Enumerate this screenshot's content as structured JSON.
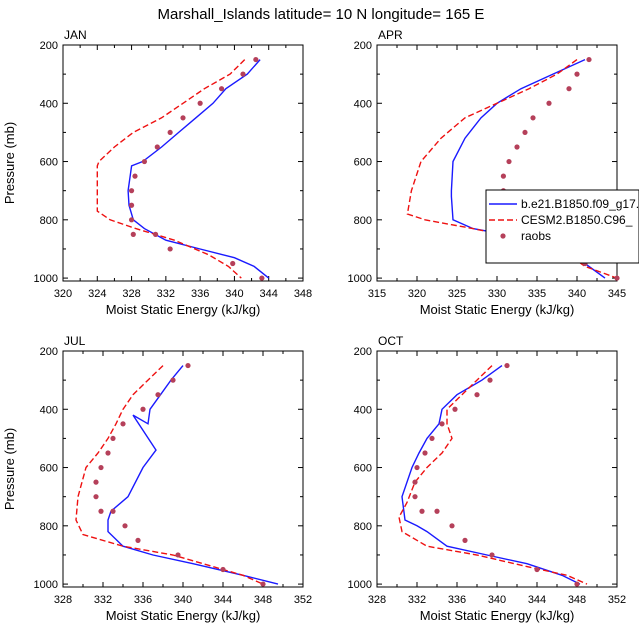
{
  "figure": {
    "title": "Marshall_Islands  latitude= 10 N longitude= 165 E",
    "colors": {
      "model1": "#1a1aff",
      "model2": "#ee1111",
      "raobs": "#b5405a",
      "axis": "#000000"
    },
    "legend": {
      "entries": [
        "b.e21.B1850.f09_g17.",
        "CESM2.B1850.C96_",
        "raobs"
      ]
    }
  },
  "chart_data": [
    {
      "type": "line",
      "panel": "JAN",
      "xlabel": "Moist Static Energy (kJ/kg)",
      "ylabel": "Pressure (mb)",
      "xlim": [
        320,
        348
      ],
      "ylim": [
        1010,
        200
      ],
      "xticks": [
        320,
        324,
        328,
        332,
        336,
        340,
        344,
        348
      ],
      "yticks": [
        200,
        400,
        600,
        800,
        1000
      ],
      "series": [
        {
          "name": "b.e21.B1850.f09_g17",
          "style": "solid",
          "color": "#1a1aff",
          "x": [
            343.0,
            341.5,
            339.0,
            337.5,
            335.5,
            333.5,
            331.5,
            329.3,
            328.0,
            327.6,
            327.7,
            328.2,
            329.5,
            332.0,
            336.0,
            340.0,
            342.3,
            344.0
          ],
          "y": [
            250,
            300,
            350,
            400,
            450,
            500,
            550,
            600,
            615,
            700,
            750,
            800,
            830,
            870,
            900,
            930,
            960,
            1000
          ]
        },
        {
          "name": "CESM2.B1850.C96",
          "style": "dashed",
          "color": "#ee1111",
          "x": [
            341.2,
            339.5,
            336.5,
            334.0,
            331.5,
            328.2,
            326.0,
            324.2,
            324.0,
            324.0,
            325.5,
            328.5,
            333.0,
            337.0,
            339.3,
            340.8
          ],
          "y": [
            250,
            300,
            350,
            400,
            450,
            500,
            550,
            600,
            615,
            770,
            800,
            830,
            870,
            920,
            960,
            1000
          ]
        }
      ],
      "raobs": {
        "x": [
          342.5,
          341.0,
          338.5,
          336.0,
          334.0,
          332.5,
          331.0,
          329.5,
          328.4,
          328.0,
          328.0,
          328.0,
          328.2,
          330.8,
          332.5,
          339.8,
          343.2
        ],
        "y": [
          250,
          300,
          350,
          400,
          450,
          500,
          550,
          600,
          650,
          700,
          750,
          800,
          850,
          850,
          900,
          950,
          1000
        ]
      }
    },
    {
      "type": "line",
      "panel": "APR",
      "xlabel": "Moist Static Energy (kJ/kg)",
      "ylabel": "Pressure (mb)",
      "xlim": [
        315,
        345
      ],
      "ylim": [
        1010,
        200
      ],
      "xticks": [
        315,
        320,
        325,
        330,
        335,
        340,
        345
      ],
      "yticks": [
        200,
        400,
        600,
        800,
        1000
      ],
      "series": [
        {
          "name": "b.e21.B1850.f09_g17",
          "style": "solid",
          "color": "#1a1aff",
          "x": [
            341.0,
            337.0,
            333.0,
            330.0,
            328.0,
            326.0,
            324.5,
            324.3,
            324.3,
            324.5,
            327.0,
            333.0,
            338.0,
            341.0,
            343.5
          ],
          "y": [
            250,
            300,
            350,
            400,
            450,
            520,
            600,
            700,
            720,
            800,
            830,
            860,
            900,
            950,
            1000
          ]
        },
        {
          "name": "CESM2.B1850.C96",
          "style": "dashed",
          "color": "#ee1111",
          "x": [
            340.0,
            337.5,
            334.0,
            330.0,
            326.0,
            323.0,
            320.5,
            319.3,
            318.8,
            321.0,
            327.0,
            334.0,
            339.0,
            341.0,
            345.0
          ],
          "y": [
            250,
            300,
            350,
            400,
            450,
            520,
            600,
            700,
            780,
            800,
            830,
            870,
            920,
            960,
            1000
          ]
        }
      ],
      "raobs": {
        "x": [
          341.5,
          340.0,
          339.0,
          336.5,
          334.5,
          333.5,
          332.5,
          331.5,
          330.8,
          330.8,
          330.8,
          331.0,
          331.8,
          333.0,
          336.3,
          341.0,
          345.0
        ],
        "y": [
          250,
          300,
          350,
          400,
          450,
          500,
          550,
          600,
          650,
          700,
          750,
          800,
          830,
          850,
          900,
          950,
          1000
        ]
      }
    },
    {
      "type": "line",
      "panel": "JUL",
      "xlabel": "Moist Static Energy (kJ/kg)",
      "ylabel": "Pressure (mb)",
      "xlim": [
        328,
        352
      ],
      "ylim": [
        1010,
        200
      ],
      "xticks": [
        328,
        332,
        336,
        340,
        344,
        348,
        352
      ],
      "yticks": [
        200,
        400,
        600,
        800,
        1000
      ],
      "series": [
        {
          "name": "b.e21.B1850.f09_g17",
          "style": "solid",
          "color": "#1a1aff",
          "x": [
            340.0,
            338.8,
            336.7,
            336.5,
            335.0,
            337.3,
            336.0,
            334.5,
            332.8,
            332.5,
            332.5,
            334.0,
            337.0,
            341.0,
            346.0,
            349.5
          ],
          "y": [
            250,
            300,
            400,
            450,
            420,
            540,
            600,
            700,
            750,
            780,
            820,
            870,
            900,
            930,
            970,
            1000
          ]
        },
        {
          "name": "CESM2.B1850.C96",
          "style": "dashed",
          "color": "#ee1111",
          "x": [
            338.0,
            336.5,
            335.0,
            334.0,
            333.3,
            332.5,
            331.5,
            330.3,
            329.5,
            329.3,
            330.0,
            334.0,
            339.0,
            343.0,
            346.0,
            348.0
          ],
          "y": [
            250,
            300,
            350,
            400,
            450,
            500,
            550,
            600,
            700,
            780,
            830,
            870,
            900,
            940,
            970,
            1000
          ]
        }
      ],
      "raobs": {
        "x": [
          340.5,
          339.0,
          337.5,
          336.0,
          334.0,
          333.0,
          332.5,
          331.8,
          331.3,
          331.3,
          331.8,
          333.0,
          334.2,
          335.5,
          339.5,
          344.0,
          348.0
        ],
        "y": [
          250,
          300,
          350,
          400,
          450,
          500,
          550,
          600,
          650,
          700,
          750,
          750,
          800,
          850,
          900,
          950,
          1000
        ]
      }
    },
    {
      "type": "line",
      "panel": "OCT",
      "xlabel": "Moist Static Energy (kJ/kg)",
      "ylabel": "Pressure (mb)",
      "xlim": [
        328,
        352
      ],
      "ylim": [
        1010,
        200
      ],
      "xticks": [
        328,
        332,
        336,
        340,
        344,
        348,
        352
      ],
      "yticks": [
        200,
        400,
        600,
        800,
        1000
      ],
      "series": [
        {
          "name": "b.e21.B1850.f09_g17",
          "style": "solid",
          "color": "#1a1aff",
          "x": [
            340.5,
            338.5,
            336.0,
            334.5,
            334.2,
            333.0,
            332.2,
            331.5,
            330.5,
            330.8,
            332.0,
            333.0,
            335.0,
            339.0,
            343.0,
            346.5,
            348.3
          ],
          "y": [
            250,
            300,
            350,
            400,
            450,
            500,
            550,
            600,
            700,
            780,
            800,
            820,
            870,
            900,
            930,
            970,
            1000
          ]
        },
        {
          "name": "CESM2.B1850.C96",
          "style": "dashed",
          "color": "#ee1111",
          "x": [
            339.5,
            338.0,
            336.5,
            335.0,
            335.0,
            335.5,
            334.5,
            333.0,
            331.8,
            331.0,
            330.2,
            330.5,
            333.0,
            338.0,
            343.0,
            347.0,
            349.0
          ],
          "y": [
            250,
            300,
            350,
            400,
            450,
            500,
            550,
            600,
            650,
            720,
            770,
            820,
            870,
            900,
            940,
            970,
            1000
          ]
        }
      ],
      "raobs": {
        "x": [
          341.0,
          339.3,
          338.0,
          335.8,
          334.5,
          333.5,
          332.8,
          332.0,
          331.8,
          331.8,
          332.5,
          334.0,
          335.5,
          336.8,
          339.5,
          344.0,
          348.0
        ],
        "y": [
          250,
          300,
          350,
          400,
          450,
          500,
          550,
          600,
          650,
          700,
          750,
          750,
          800,
          850,
          900,
          950,
          1000
        ]
      }
    }
  ]
}
